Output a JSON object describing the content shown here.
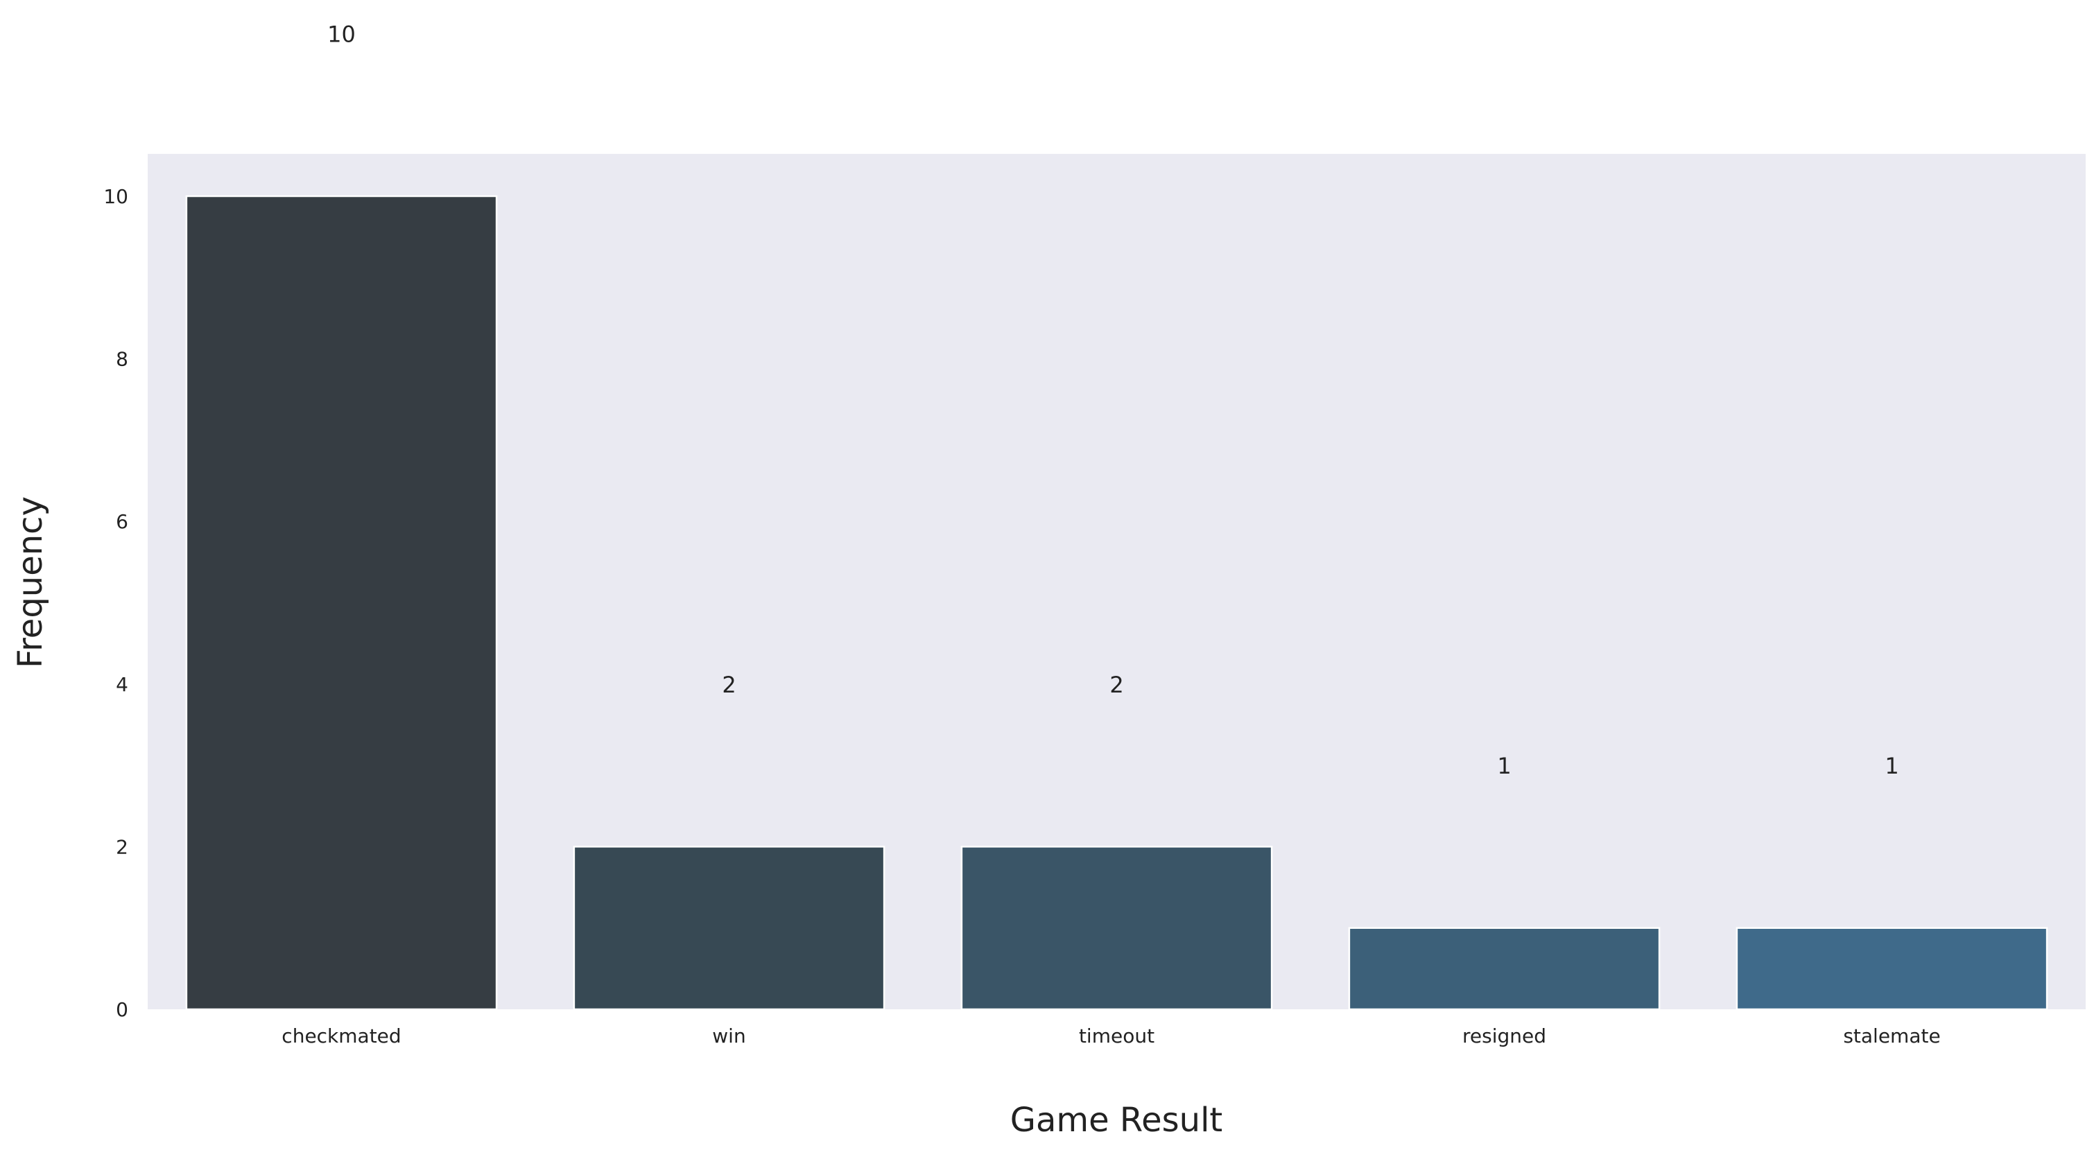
{
  "chart_data": {
    "type": "bar",
    "title": "",
    "xlabel": "Game Result",
    "ylabel": "Frequency",
    "categories": [
      "checkmated",
      "win",
      "timeout",
      "resigned",
      "stalemate"
    ],
    "values": [
      10,
      2,
      2,
      1,
      1
    ],
    "data_labels": [
      "10",
      "2",
      "2",
      "1",
      "1"
    ],
    "ylim": [
      0,
      10.5
    ],
    "yticks": [
      0,
      2,
      4,
      6,
      8,
      10
    ],
    "ytick_labels": [
      "0",
      "2",
      "4",
      "6",
      "8",
      "10"
    ],
    "grid": false,
    "legend": "none",
    "colors": {
      "plot_background": "#eaeaf2",
      "bar_edge": "#ffffff",
      "bars": [
        "#363d43",
        "#374954",
        "#3a5567",
        "#3c6079",
        "#3f6a8a"
      ]
    }
  }
}
